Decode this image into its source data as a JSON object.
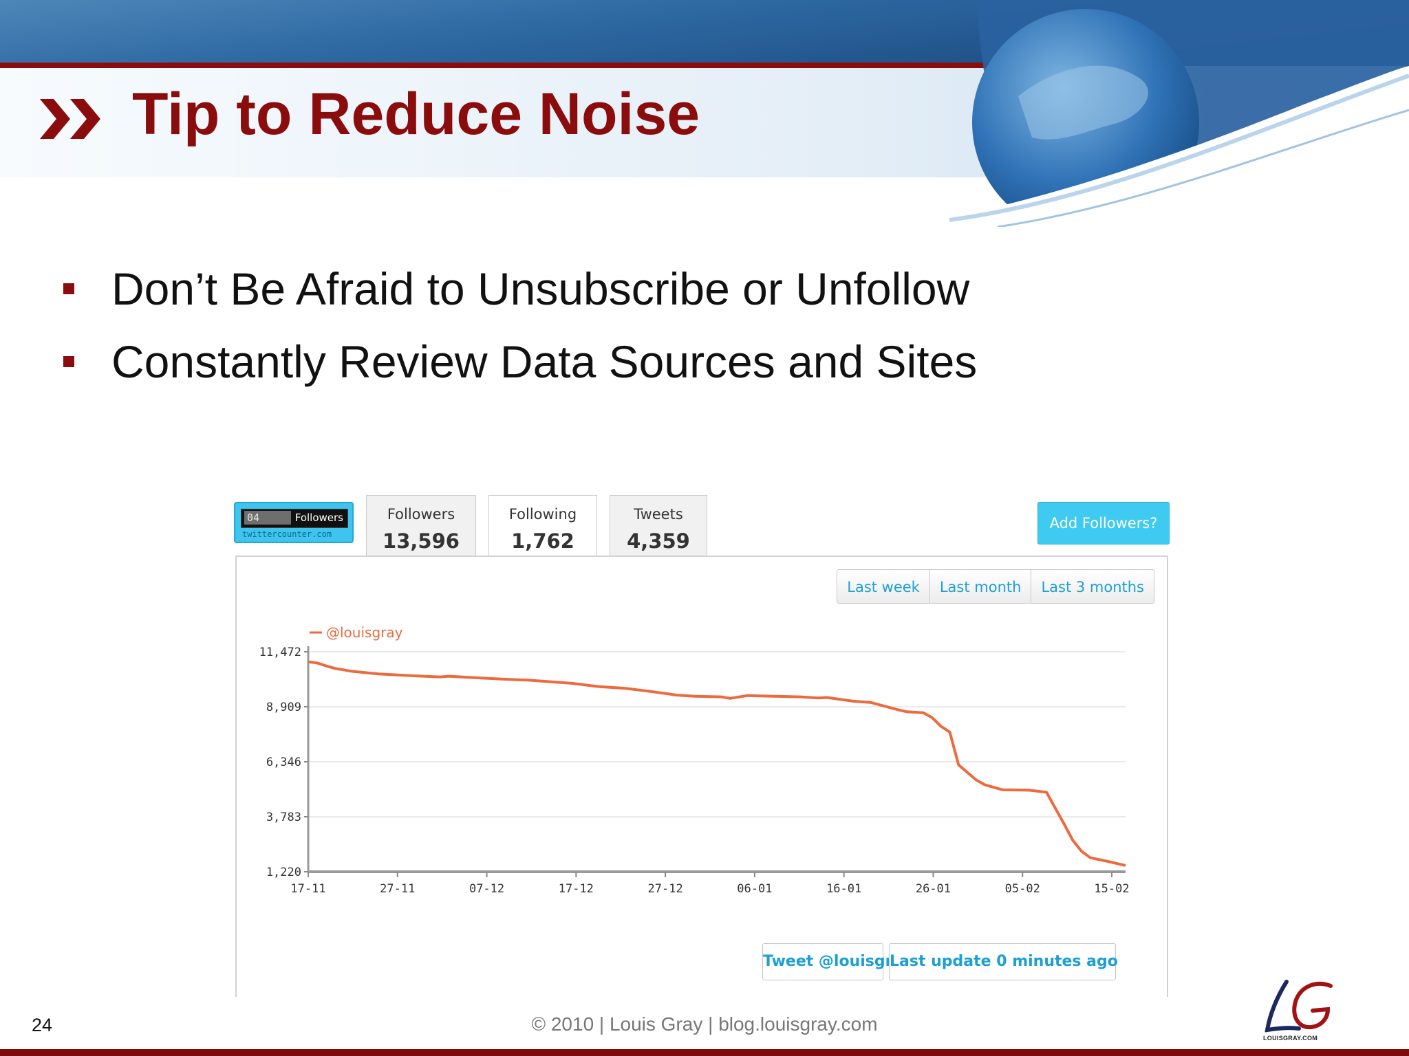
{
  "slide": {
    "title": "Tip to Reduce Noise",
    "bullets": [
      "Don’t Be Afraid to Unsubscribe or Unfollow",
      "Constantly Review Data Sources and Sites"
    ],
    "page_number": "24",
    "footer": "© 2010 | Louis Gray | blog.louisgray.com",
    "logo_caption": "LOUISGRAY.COM",
    "colors": {
      "accent": "#8b0c0c",
      "widget_blue": "#3fcaf2",
      "link_blue": "#1c9fd3",
      "series": "#ec6a3e"
    }
  },
  "widget": {
    "badge": {
      "count": "04",
      "label": "Followers",
      "site": "twittercounter.com"
    },
    "tabs": [
      {
        "label": "Followers",
        "value": "13,596"
      },
      {
        "label": "Following",
        "value": "1,762",
        "active": true
      },
      {
        "label": "Tweets",
        "value": "4,359"
      }
    ],
    "add_button": "Add Followers?",
    "ranges": [
      "Last week",
      "Last month",
      "Last 3 months"
    ],
    "tweet_button": "Tweet @louisgray",
    "update_button": "Last update 0 minutes ago"
  },
  "chart_data": {
    "type": "line",
    "title": "",
    "xlabel": "",
    "ylabel": "",
    "legend_position": "top-left",
    "grid": true,
    "yticks": [
      1220,
      3783,
      6346,
      8909,
      11472
    ],
    "ytick_labels": [
      "1,220",
      "3,783",
      "6,346",
      "8,909",
      "11,472"
    ],
    "ylim": [
      1220,
      11472
    ],
    "xticks": [
      "17-11",
      "27-11",
      "07-12",
      "17-12",
      "27-12",
      "06-01",
      "16-01",
      "26-01",
      "05-02",
      "15-02"
    ],
    "x_range_days": [
      0,
      93
    ],
    "series": [
      {
        "name": "@louisgray",
        "x_days": [
          0,
          1,
          2,
          3,
          4,
          5,
          8,
          12,
          15,
          16,
          19,
          22,
          25,
          27,
          30,
          33,
          36,
          39,
          42,
          44,
          47,
          48,
          50,
          53,
          56,
          58,
          59,
          62,
          64,
          65,
          67,
          68,
          70,
          71,
          72,
          73,
          74,
          76,
          77,
          79,
          82,
          84,
          86,
          87,
          88,
          89,
          91,
          93
        ],
        "values": [
          11000,
          10950,
          10820,
          10700,
          10630,
          10560,
          10440,
          10350,
          10300,
          10330,
          10260,
          10200,
          10150,
          10090,
          10000,
          9850,
          9770,
          9620,
          9450,
          9400,
          9370,
          9300,
          9430,
          9400,
          9370,
          9320,
          9340,
          9170,
          9110,
          9000,
          8780,
          8680,
          8630,
          8400,
          8000,
          7730,
          6200,
          5500,
          5270,
          5040,
          5020,
          4930,
          3450,
          2680,
          2170,
          1870,
          1700,
          1510
        ]
      }
    ]
  }
}
